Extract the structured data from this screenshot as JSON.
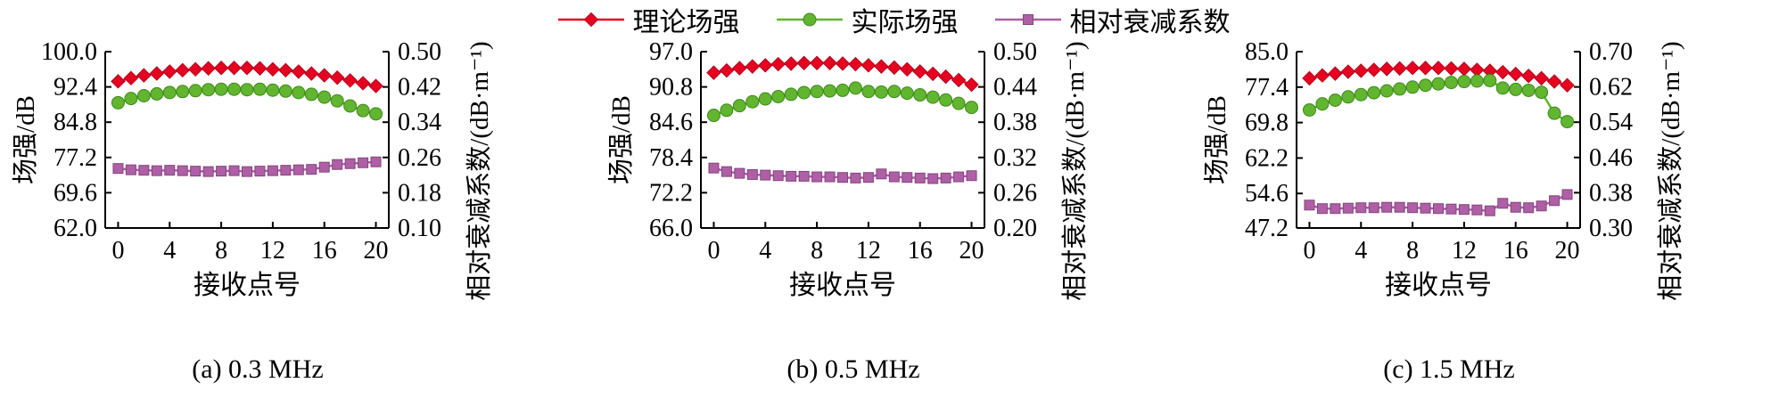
{
  "legend": {
    "items": [
      {
        "key": "theoretical",
        "label": "理论场强",
        "color": "#e60021",
        "edge": "#b00019",
        "marker": "diamond"
      },
      {
        "key": "actual",
        "label": "实际场强",
        "color": "#62b52e",
        "edge": "#3c8a1c",
        "marker": "circle"
      },
      {
        "key": "attenuation",
        "label": "相对衰减系数",
        "color": "#ae5fa5",
        "edge": "#85457e",
        "marker": "square"
      }
    ]
  },
  "chart_data": [
    {
      "type": "line",
      "key": "a",
      "caption": "(a)  0.3 MHz",
      "xlabel": "接收点号",
      "ylabel_left": "场强/dB",
      "ylabel_right": "相对衰减系数/(dB·m⁻¹)",
      "x": [
        0,
        1,
        2,
        3,
        4,
        5,
        6,
        7,
        8,
        9,
        10,
        11,
        12,
        13,
        14,
        15,
        16,
        17,
        18,
        19,
        20
      ],
      "x_ticks": [
        "0",
        "4",
        "8",
        "12",
        "16",
        "20"
      ],
      "xlim": [
        -1,
        21
      ],
      "left_ticks": [
        "62.0",
        "69.6",
        "77.2",
        "84.8",
        "92.4",
        "100.0"
      ],
      "left_lim": [
        62.0,
        100.0
      ],
      "right_ticks": [
        "0.10",
        "0.18",
        "0.26",
        "0.34",
        "0.42",
        "0.50"
      ],
      "right_lim": [
        0.1,
        0.5
      ],
      "series": [
        {
          "key": "theoretical",
          "name": "理论场强",
          "axis": "left",
          "values": [
            93.6,
            94.3,
            94.9,
            95.3,
            95.7,
            96.0,
            96.2,
            96.4,
            96.5,
            96.5,
            96.5,
            96.4,
            96.2,
            96.0,
            95.7,
            95.3,
            94.9,
            94.4,
            93.8,
            93.2,
            92.6
          ]
        },
        {
          "key": "actual",
          "name": "实际场强",
          "axis": "left",
          "values": [
            89.0,
            89.9,
            90.5,
            90.9,
            91.2,
            91.4,
            91.6,
            91.8,
            91.9,
            91.9,
            91.8,
            91.9,
            91.7,
            91.5,
            91.2,
            90.8,
            90.2,
            89.4,
            88.3,
            87.3,
            86.6
          ]
        },
        {
          "key": "attenuation",
          "name": "相对衰减系数",
          "axis": "right",
          "values": [
            0.235,
            0.232,
            0.231,
            0.23,
            0.231,
            0.23,
            0.229,
            0.228,
            0.229,
            0.23,
            0.228,
            0.229,
            0.23,
            0.231,
            0.232,
            0.233,
            0.238,
            0.244,
            0.246,
            0.248,
            0.25
          ]
        }
      ]
    },
    {
      "type": "line",
      "key": "b",
      "caption": "(b)  0.5 MHz",
      "xlabel": "接收点号",
      "ylabel_left": "场强/dB",
      "ylabel_right": "相对衰减系数/(dB·m⁻¹)",
      "x": [
        0,
        1,
        2,
        3,
        4,
        5,
        6,
        7,
        8,
        9,
        10,
        11,
        12,
        13,
        14,
        15,
        16,
        17,
        18,
        19,
        20
      ],
      "x_ticks": [
        "0",
        "4",
        "8",
        "12",
        "16",
        "20"
      ],
      "xlim": [
        -1,
        21
      ],
      "left_ticks": [
        "66.0",
        "72.2",
        "78.4",
        "84.6",
        "90.8",
        "97.0"
      ],
      "left_lim": [
        66.0,
        97.0
      ],
      "right_ticks": [
        "0.20",
        "0.26",
        "0.32",
        "0.38",
        "0.44",
        "0.50"
      ],
      "right_lim": [
        0.2,
        0.5
      ],
      "series": [
        {
          "key": "theoretical",
          "name": "理论场强",
          "axis": "left",
          "values": [
            93.3,
            93.7,
            94.1,
            94.4,
            94.6,
            94.8,
            94.9,
            95.0,
            95.0,
            95.0,
            94.9,
            94.8,
            94.6,
            94.4,
            94.2,
            93.9,
            93.5,
            93.1,
            92.6,
            92.0,
            91.2
          ]
        },
        {
          "key": "actual",
          "name": "实际场强",
          "axis": "left",
          "values": [
            85.8,
            86.7,
            87.5,
            88.2,
            88.7,
            89.1,
            89.5,
            89.8,
            90.0,
            90.1,
            90.2,
            90.6,
            90.0,
            89.9,
            90.0,
            89.7,
            89.4,
            89.0,
            88.5,
            87.9,
            87.2
          ]
        },
        {
          "key": "attenuation",
          "name": "相对衰减系数",
          "axis": "right",
          "values": [
            0.302,
            0.296,
            0.293,
            0.291,
            0.29,
            0.289,
            0.288,
            0.288,
            0.287,
            0.287,
            0.286,
            0.285,
            0.286,
            0.292,
            0.287,
            0.286,
            0.285,
            0.284,
            0.285,
            0.287,
            0.289
          ]
        }
      ]
    },
    {
      "type": "line",
      "key": "c",
      "caption": "(c)  1.5 MHz",
      "xlabel": "接收点号",
      "ylabel_left": "场强/dB",
      "ylabel_right": "相对衰减系数/(dB·m⁻¹)",
      "x": [
        0,
        1,
        2,
        3,
        4,
        5,
        6,
        7,
        8,
        9,
        10,
        11,
        12,
        13,
        14,
        15,
        16,
        17,
        18,
        19,
        20
      ],
      "x_ticks": [
        "0",
        "4",
        "8",
        "12",
        "16",
        "20"
      ],
      "xlim": [
        -1,
        21
      ],
      "left_ticks": [
        "47.2",
        "54.6",
        "62.2",
        "69.8",
        "77.4",
        "85.0"
      ],
      "left_lim": [
        47.2,
        85.0
      ],
      "right_ticks": [
        "0.30",
        "0.38",
        "0.46",
        "0.54",
        "0.62",
        "0.70"
      ],
      "right_lim": [
        0.3,
        0.7
      ],
      "series": [
        {
          "key": "theoretical",
          "name": "理论场强",
          "axis": "left",
          "values": [
            79.3,
            79.9,
            80.3,
            80.7,
            80.9,
            81.1,
            81.3,
            81.4,
            81.5,
            81.5,
            81.5,
            81.4,
            81.3,
            81.1,
            80.9,
            80.6,
            80.2,
            79.8,
            79.3,
            78.6,
            77.8
          ]
        },
        {
          "key": "actual",
          "name": "实际场强",
          "axis": "left",
          "values": [
            72.5,
            73.8,
            74.6,
            75.3,
            75.8,
            76.2,
            76.6,
            77.0,
            77.4,
            77.8,
            78.1,
            78.4,
            78.6,
            78.7,
            78.8,
            77.2,
            76.9,
            76.7,
            76.3,
            71.8,
            70.0
          ]
        },
        {
          "key": "attenuation",
          "name": "相对衰减系数",
          "axis": "right",
          "values": [
            0.352,
            0.344,
            0.344,
            0.345,
            0.346,
            0.346,
            0.347,
            0.347,
            0.346,
            0.345,
            0.344,
            0.343,
            0.342,
            0.341,
            0.339,
            0.356,
            0.347,
            0.346,
            0.35,
            0.362,
            0.376
          ]
        }
      ]
    }
  ]
}
